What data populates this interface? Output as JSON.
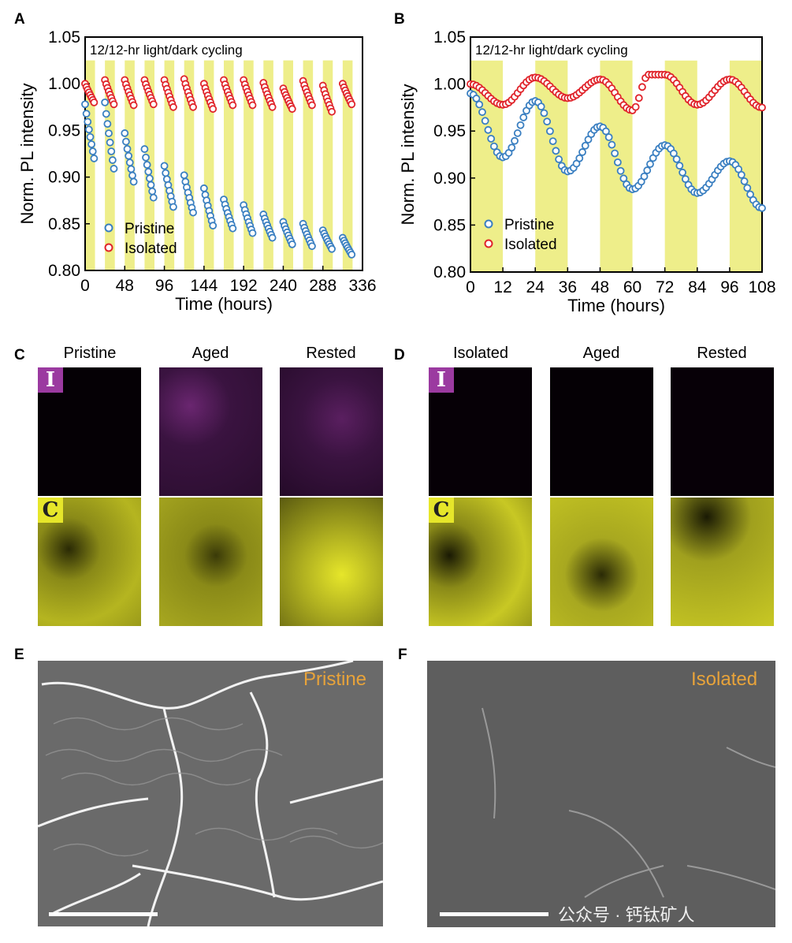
{
  "panels": {
    "A": {
      "letter": "A"
    },
    "B": {
      "letter": "B"
    },
    "C": {
      "letter": "C",
      "captions": [
        "Pristine",
        "Aged",
        "Rested"
      ],
      "badge_top": "I",
      "badge_bottom": "C"
    },
    "D": {
      "letter": "D",
      "captions": [
        "Isolated",
        "Aged",
        "Rested"
      ],
      "badge_top": "I",
      "badge_bottom": "C"
    },
    "E": {
      "letter": "E",
      "label": "Pristine"
    },
    "F": {
      "letter": "F",
      "label": "Isolated"
    }
  },
  "watermark": "公众号 · 钙钛矿人",
  "colors": {
    "pristine": "#3a7fc1",
    "isolated": "#e0242b",
    "light_band": "#eeee8a",
    "iodine": "#9b3aa0",
    "carbon": "#e6e62a",
    "sem_label": "#e8a33a"
  },
  "chart_data": [
    {
      "type": "scatter",
      "panel": "A",
      "annotation": "12/12-hr light/dark cycling",
      "xlabel": "Time (hours)",
      "ylabel": "Norm. PL intensity",
      "xlim": [
        0,
        336
      ],
      "ylim": [
        0.8,
        1.05
      ],
      "xticks": [
        0,
        48,
        96,
        144,
        192,
        240,
        288,
        336
      ],
      "yticks": [
        0.8,
        0.85,
        0.9,
        0.95,
        1.0,
        1.05
      ],
      "ytick_labels": [
        "0.80",
        "0.85",
        "0.90",
        "0.95",
        "1.00",
        "1.05"
      ],
      "grid": false,
      "legend_position": "bottom-left",
      "light_periods": [
        [
          0,
          12
        ],
        [
          24,
          36
        ],
        [
          48,
          60
        ],
        [
          72,
          84
        ],
        [
          96,
          108
        ],
        [
          120,
          132
        ],
        [
          144,
          156
        ],
        [
          168,
          180
        ],
        [
          192,
          204
        ],
        [
          216,
          228
        ],
        [
          240,
          252
        ],
        [
          264,
          276
        ],
        [
          288,
          300
        ],
        [
          312,
          324
        ]
      ],
      "series": [
        {
          "name": "Pristine",
          "cycles": [
            {
              "t0": 0,
              "y_start": 0.978,
              "y_end": 0.92
            },
            {
              "t0": 24,
              "y_start": 0.98,
              "y_end": 0.909
            },
            {
              "t0": 48,
              "y_start": 0.947,
              "y_end": 0.895
            },
            {
              "t0": 72,
              "y_start": 0.93,
              "y_end": 0.878
            },
            {
              "t0": 96,
              "y_start": 0.912,
              "y_end": 0.868
            },
            {
              "t0": 120,
              "y_start": 0.902,
              "y_end": 0.862
            },
            {
              "t0": 144,
              "y_start": 0.888,
              "y_end": 0.848
            },
            {
              "t0": 168,
              "y_start": 0.876,
              "y_end": 0.845
            },
            {
              "t0": 192,
              "y_start": 0.87,
              "y_end": 0.84
            },
            {
              "t0": 216,
              "y_start": 0.86,
              "y_end": 0.835
            },
            {
              "t0": 240,
              "y_start": 0.852,
              "y_end": 0.828
            },
            {
              "t0": 264,
              "y_start": 0.85,
              "y_end": 0.826
            },
            {
              "t0": 288,
              "y_start": 0.843,
              "y_end": 0.823
            },
            {
              "t0": 312,
              "y_start": 0.835,
              "y_end": 0.817
            }
          ]
        },
        {
          "name": "Isolated",
          "cycles": [
            {
              "t0": 0,
              "y_start": 1.0,
              "y_end": 0.98
            },
            {
              "t0": 24,
              "y_start": 1.004,
              "y_end": 0.978
            },
            {
              "t0": 48,
              "y_start": 1.004,
              "y_end": 0.977
            },
            {
              "t0": 72,
              "y_start": 1.004,
              "y_end": 0.978
            },
            {
              "t0": 96,
              "y_start": 1.004,
              "y_end": 0.975
            },
            {
              "t0": 120,
              "y_start": 1.005,
              "y_end": 0.975
            },
            {
              "t0": 144,
              "y_start": 1.0,
              "y_end": 0.973
            },
            {
              "t0": 168,
              "y_start": 1.004,
              "y_end": 0.977
            },
            {
              "t0": 192,
              "y_start": 1.004,
              "y_end": 0.977
            },
            {
              "t0": 216,
              "y_start": 1.001,
              "y_end": 0.975
            },
            {
              "t0": 240,
              "y_start": 0.995,
              "y_end": 0.973
            },
            {
              "t0": 264,
              "y_start": 1.003,
              "y_end": 0.977
            },
            {
              "t0": 288,
              "y_start": 0.998,
              "y_end": 0.97
            },
            {
              "t0": 312,
              "y_start": 1.0,
              "y_end": 0.978
            }
          ]
        }
      ]
    },
    {
      "type": "scatter",
      "panel": "B",
      "annotation": "12/12-hr light/dark cycling",
      "xlabel": "Time (hours)",
      "ylabel": "Norm. PL intensity",
      "xlim": [
        0,
        108
      ],
      "ylim": [
        0.8,
        1.05
      ],
      "xticks": [
        0,
        12,
        24,
        36,
        48,
        60,
        72,
        84,
        96,
        108
      ],
      "yticks": [
        0.8,
        0.85,
        0.9,
        0.95,
        1.0,
        1.05
      ],
      "ytick_labels": [
        "0.80",
        "0.85",
        "0.90",
        "0.95",
        "1.00",
        "1.05"
      ],
      "grid": false,
      "legend_position": "bottom-left",
      "light_periods": [
        [
          0,
          12
        ],
        [
          24,
          36
        ],
        [
          48,
          60
        ],
        [
          72,
          84
        ],
        [
          96,
          108
        ]
      ],
      "series": [
        {
          "name": "Pristine",
          "keypoints": [
            [
              0,
              0.99
            ],
            [
              12,
              0.922
            ],
            [
              24,
              0.982
            ],
            [
              36,
              0.907
            ],
            [
              48,
              0.955
            ],
            [
              60,
              0.888
            ],
            [
              72,
              0.935
            ],
            [
              84,
              0.884
            ],
            [
              96,
              0.918
            ],
            [
              108,
              0.868
            ]
          ]
        },
        {
          "name": "Isolated",
          "keypoints": [
            [
              0,
              1.0
            ],
            [
              12,
              0.978
            ],
            [
              24,
              1.007
            ],
            [
              36,
              0.985
            ],
            [
              48,
              1.005
            ],
            [
              60,
              0.972
            ],
            [
              66,
              1.01
            ],
            [
              72,
              1.01
            ],
            [
              84,
              0.978
            ],
            [
              96,
              1.005
            ],
            [
              108,
              0.975
            ]
          ]
        }
      ]
    }
  ]
}
